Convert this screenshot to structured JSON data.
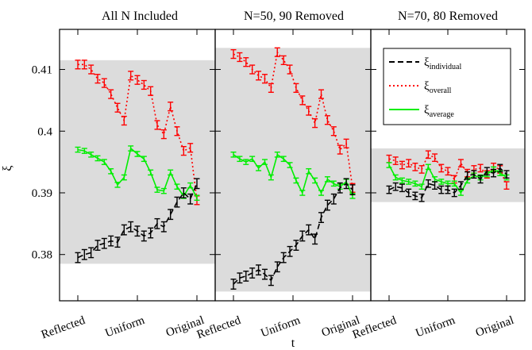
{
  "chart_data": {
    "type": "line",
    "xlabel": "t",
    "ylabel": "ξ",
    "ylim": [
      0.3725,
      0.4165
    ],
    "yticks": [
      0.38,
      0.39,
      0.4,
      0.41
    ],
    "ytick_labels": [
      "0.38",
      "0.39",
      "0.4",
      "0.41"
    ],
    "xtick_labels": [
      "Reflected",
      "Uniform",
      "Original"
    ],
    "legend": {
      "placement": "right panel, top",
      "entries": [
        {
          "base": "ξ",
          "sub": "individual",
          "color": "#000000",
          "style": "dashed"
        },
        {
          "base": "ξ",
          "sub": "overall",
          "color": "#ff0000",
          "style": "dotted"
        },
        {
          "base": "ξ",
          "sub": "average",
          "color": "#00ee00",
          "style": "solid"
        }
      ]
    },
    "colors": {
      "individual": "#000000",
      "overall": "#ff0000",
      "average": "#00ee00",
      "band": "#dcdcdc"
    },
    "panels": [
      {
        "title": "All N Included",
        "band": [
          0.3785,
          0.4115
        ],
        "series": [
          {
            "key": "overall",
            "values": [
              0.4108,
              0.4108,
              0.41,
              0.4085,
              0.4078,
              0.406,
              0.4038,
              0.4017,
              0.409,
              0.4083,
              0.4075,
              0.4065,
              0.401,
              0.3995,
              0.404,
              0.4,
              0.3968,
              0.3973,
              0.3888
            ],
            "err": 0.0007
          },
          {
            "key": "average",
            "values": [
              0.397,
              0.3968,
              0.3962,
              0.3956,
              0.395,
              0.3935,
              0.3913,
              0.3925,
              0.3972,
              0.3963,
              0.3955,
              0.3933,
              0.3905,
              0.3903,
              0.3933,
              0.391,
              0.3895,
              0.3912,
              0.3892
            ],
            "err": 0.0004
          },
          {
            "key": "individual",
            "values": [
              0.3795,
              0.38,
              0.3803,
              0.3815,
              0.3818,
              0.3822,
              0.382,
              0.384,
              0.3845,
              0.3838,
              0.383,
              0.3835,
              0.385,
              0.3845,
              0.3865,
              0.3885,
              0.39,
              0.389,
              0.3915
            ],
            "err": 0.0008
          }
        ]
      },
      {
        "title": "N=50, 90 Removed",
        "band": [
          0.374,
          0.4135
        ],
        "series": [
          {
            "key": "overall",
            "values": [
              0.4125,
              0.412,
              0.4112,
              0.41,
              0.409,
              0.4085,
              0.407,
              0.4128,
              0.4115,
              0.41,
              0.407,
              0.405,
              0.4033,
              0.4013,
              0.406,
              0.4018,
              0.4,
              0.397,
              0.398,
              0.3908
            ],
            "err": 0.0007
          },
          {
            "key": "average",
            "values": [
              0.3962,
              0.3955,
              0.395,
              0.3955,
              0.394,
              0.395,
              0.3925,
              0.3962,
              0.3955,
              0.3945,
              0.392,
              0.39,
              0.3935,
              0.392,
              0.39,
              0.3922,
              0.3915,
              0.391,
              0.3918,
              0.3895
            ],
            "err": 0.0004
          },
          {
            "key": "individual",
            "values": [
              0.3752,
              0.3762,
              0.3765,
              0.377,
              0.3775,
              0.3768,
              0.3758,
              0.378,
              0.3795,
              0.3805,
              0.3815,
              0.383,
              0.384,
              0.3825,
              0.386,
              0.388,
              0.389,
              0.3908,
              0.3915,
              0.3905
            ],
            "err": 0.0008
          }
        ]
      },
      {
        "title": "N=70, 80 Removed",
        "band": [
          0.3885,
          0.3972
        ],
        "series": [
          {
            "key": "overall",
            "values": [
              0.3955,
              0.3952,
              0.3945,
              0.3948,
              0.3942,
              0.3938,
              0.3962,
              0.3957,
              0.394,
              0.3935,
              0.3922,
              0.3948,
              0.3932,
              0.3938,
              0.394,
              0.393,
              0.3942,
              0.3938,
              0.3912
            ],
            "err": 0.0006
          },
          {
            "key": "average",
            "values": [
              0.3945,
              0.3925,
              0.392,
              0.3918,
              0.3915,
              0.391,
              0.3942,
              0.3922,
              0.3918,
              0.3915,
              0.3915,
              0.39,
              0.392,
              0.3928,
              0.3925,
              0.393,
              0.3938,
              0.3932,
              0.3925
            ],
            "err": 0.0004
          },
          {
            "key": "individual",
            "values": [
              0.3905,
              0.391,
              0.3908,
              0.39,
              0.3895,
              0.3892,
              0.3915,
              0.3912,
              0.3905,
              0.3905,
              0.39,
              0.3912,
              0.3928,
              0.393,
              0.3922,
              0.3935,
              0.3932,
              0.394,
              0.393
            ],
            "err": 0.0006
          }
        ]
      }
    ]
  }
}
